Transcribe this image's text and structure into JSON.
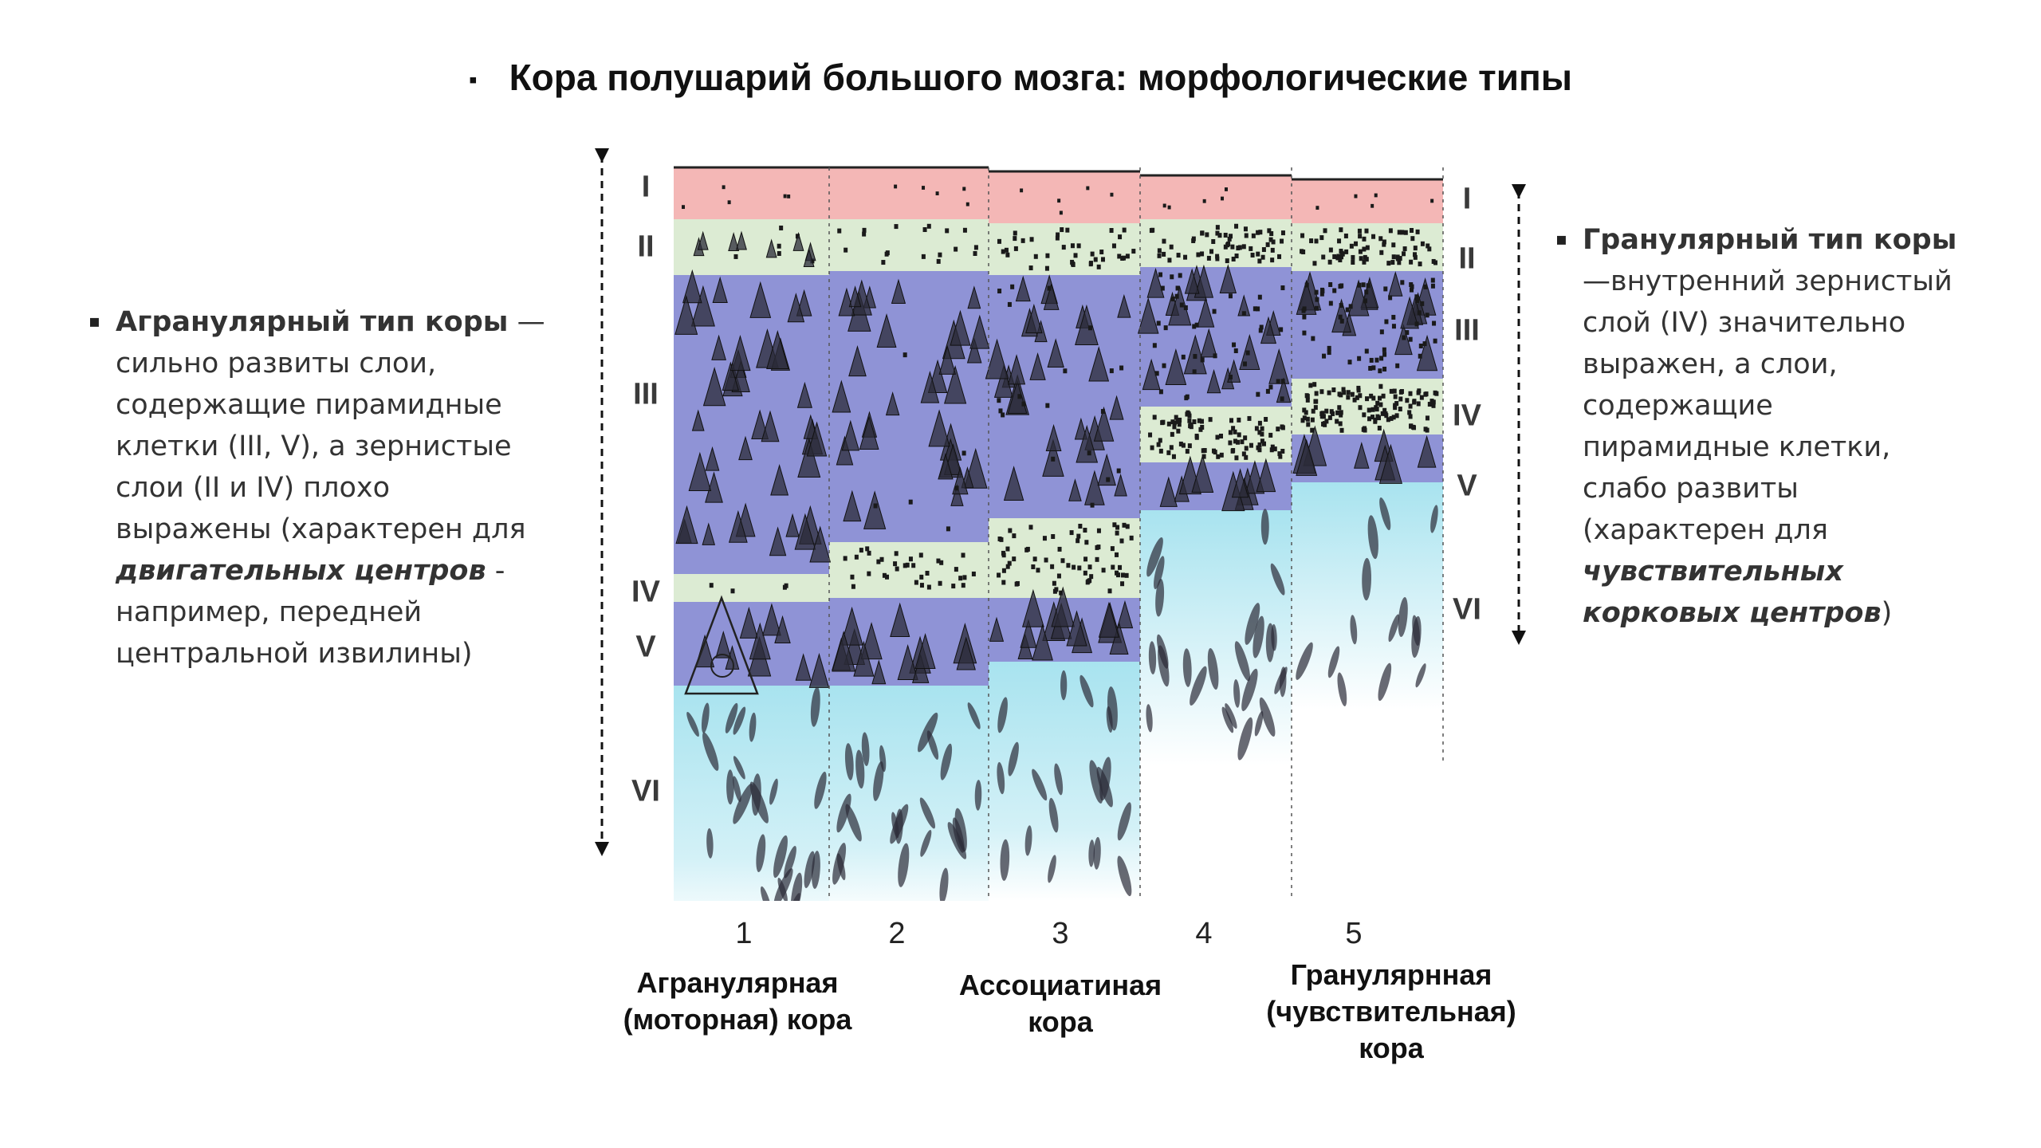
{
  "title": {
    "bullet": "▪",
    "text": "Кора полушарий большого мозга: морфологические типы"
  },
  "left_note": {
    "bullet": "▪",
    "bold_lead": "Агранулярный тип коры",
    "text_1": " —  сильно развиты слои, содержащие пирамидные клетки (III, V), а зернистые слои (II и IV) плохо выражены (характерен для ",
    "emphasis": "двигательных центров",
    "text_2": " -  например, передней центральной извилины)"
  },
  "right_note": {
    "bullet": "▪",
    "bold_lead": "Гранулярный тип коры",
    "text_1": " —внутренний зернистый слой (IV) значительно выражен, а слои, содержащие пирамидные клетки, слабо развиты (характерен для ",
    "emphasis": "чувствительных корковых центров",
    "text_2": ")"
  },
  "diagram": {
    "left_layers": [
      "I",
      "II",
      "III",
      "IV",
      "V",
      "VI"
    ],
    "right_layers": [
      "I",
      "II",
      "III",
      "IV",
      "V",
      "VI"
    ],
    "column_numbers": [
      "1",
      "2",
      "3",
      "4",
      "5"
    ],
    "captions": [
      "Агранулярная\n(моторная) кора",
      "Ассоциатиная\nкора",
      "Гранулярнная\n(чувствительная)\nкора"
    ],
    "layer_colors": {
      "I": "#f4b7b6",
      "II": "#dcebd3",
      "III": "#8f93d6",
      "IV": "#dcebd3",
      "V": "#8f93d6",
      "VI": "#a8e3ef"
    }
  }
}
